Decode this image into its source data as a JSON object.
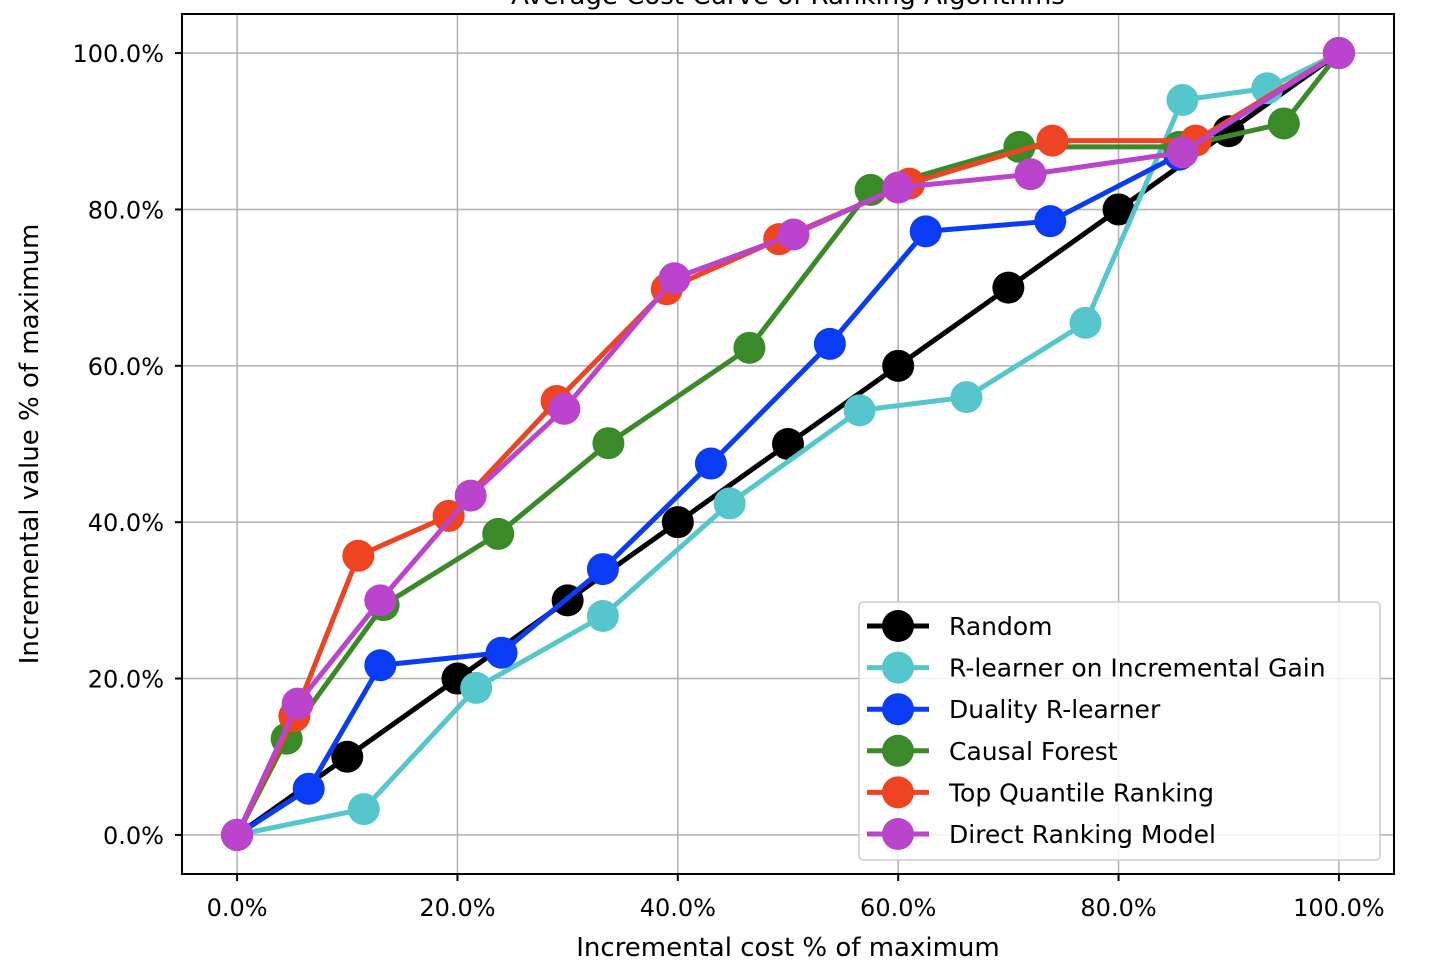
{
  "chart_data": {
    "type": "line",
    "title": "Average Cost Curve of Ranking Algorithms",
    "xlabel": "Incremental cost % of maximum",
    "ylabel": "Incremental value % of maximum",
    "xlim": [
      -0.05,
      1.05
    ],
    "ylim": [
      -0.05,
      1.05
    ],
    "x_ticks": [
      0.0,
      0.2,
      0.4,
      0.6,
      0.8,
      1.0
    ],
    "x_tick_labels": [
      "0.0%",
      "20.0%",
      "40.0%",
      "60.0%",
      "80.0%",
      "100.0%"
    ],
    "y_ticks": [
      0.0,
      0.2,
      0.4,
      0.6,
      0.8,
      1.0
    ],
    "y_tick_labels": [
      "0.0%",
      "20.0%",
      "40.0%",
      "60.0%",
      "80.0%",
      "100.0%"
    ],
    "grid": true,
    "legend_position": "lower-right",
    "series": [
      {
        "name": "Random",
        "color": "#000000",
        "x": [
          0.0,
          0.1,
          0.2,
          0.3,
          0.4,
          0.5,
          0.6,
          0.7,
          0.8,
          0.9,
          1.0
        ],
        "y": [
          0.0,
          0.1,
          0.2,
          0.3,
          0.4,
          0.5,
          0.6,
          0.7,
          0.8,
          0.9,
          1.0
        ]
      },
      {
        "name": "R-learner on Incremental Gain",
        "color": "#55c7cc",
        "x": [
          0.0,
          0.115,
          0.217,
          0.332,
          0.447,
          0.565,
          0.662,
          0.77,
          0.858,
          0.935,
          1.0
        ],
        "y": [
          0.0,
          0.033,
          0.188,
          0.28,
          0.424,
          0.543,
          0.56,
          0.655,
          0.94,
          0.955,
          1.0
        ]
      },
      {
        "name": "Duality R-learner",
        "color": "#0a3cf5",
        "x": [
          0.0,
          0.065,
          0.13,
          0.24,
          0.332,
          0.43,
          0.538,
          0.625,
          0.738,
          0.855,
          1.0
        ],
        "y": [
          0.0,
          0.059,
          0.217,
          0.233,
          0.34,
          0.475,
          0.628,
          0.772,
          0.785,
          0.87,
          1.0
        ]
      },
      {
        "name": "Causal Forest",
        "color": "#3a8a2a",
        "x": [
          0.0,
          0.045,
          0.133,
          0.237,
          0.337,
          0.465,
          0.575,
          0.71,
          0.855,
          0.95,
          1.0
        ],
        "y": [
          0.0,
          0.123,
          0.294,
          0.385,
          0.501,
          0.623,
          0.825,
          0.88,
          0.88,
          0.91,
          1.0
        ]
      },
      {
        "name": "Top Quantile Ranking",
        "color": "#ee4422",
        "x": [
          0.0,
          0.052,
          0.11,
          0.192,
          0.29,
          0.39,
          0.492,
          0.61,
          0.74,
          0.87,
          1.0
        ],
        "y": [
          0.0,
          0.152,
          0.357,
          0.408,
          0.555,
          0.698,
          0.762,
          0.833,
          0.888,
          0.888,
          1.0
        ]
      },
      {
        "name": "Direct Ranking Model",
        "color": "#bb44cc",
        "x": [
          0.0,
          0.055,
          0.13,
          0.212,
          0.297,
          0.397,
          0.505,
          0.6,
          0.72,
          0.858,
          1.0
        ],
        "y": [
          0.0,
          0.168,
          0.3,
          0.434,
          0.545,
          0.712,
          0.768,
          0.828,
          0.845,
          0.873,
          1.0
        ]
      }
    ]
  }
}
